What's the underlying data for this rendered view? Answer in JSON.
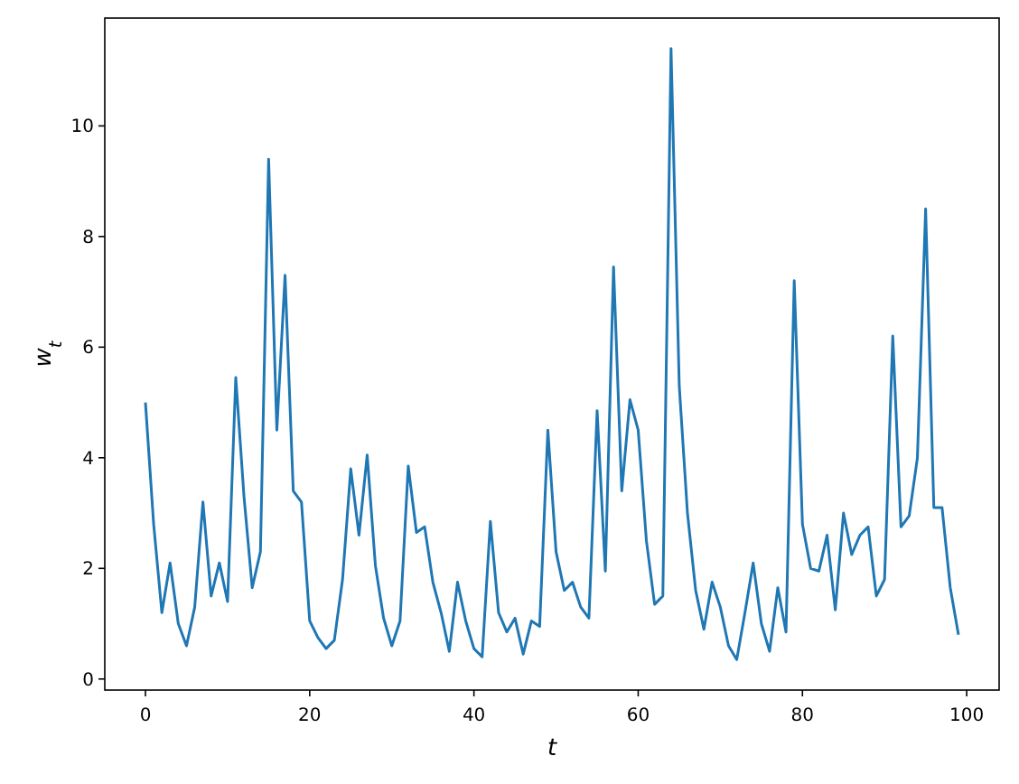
{
  "chart_data": {
    "type": "line",
    "xlabel": "t",
    "ylabel": "w$_{t}$",
    "x": [
      0,
      1,
      2,
      3,
      4,
      5,
      6,
      7,
      8,
      9,
      10,
      11,
      12,
      13,
      14,
      15,
      16,
      17,
      18,
      19,
      20,
      21,
      22,
      23,
      24,
      25,
      26,
      27,
      28,
      29,
      30,
      31,
      32,
      33,
      34,
      35,
      36,
      37,
      38,
      39,
      40,
      41,
      42,
      43,
      44,
      45,
      46,
      47,
      48,
      49,
      50,
      51,
      52,
      53,
      54,
      55,
      56,
      57,
      58,
      59,
      60,
      61,
      62,
      63,
      64,
      65,
      66,
      67,
      68,
      69,
      70,
      71,
      72,
      73,
      74,
      75,
      76,
      77,
      78,
      79,
      80,
      81,
      82,
      83,
      84,
      85,
      86,
      87,
      88,
      89,
      90,
      91,
      92,
      93,
      94,
      95,
      96,
      97,
      98,
      99
    ],
    "series": [
      {
        "color": "#1f77b4",
        "values": [
          5.0,
          2.8,
          1.2,
          2.1,
          1.0,
          0.6,
          1.3,
          3.2,
          1.5,
          2.1,
          1.4,
          5.45,
          3.3,
          1.65,
          2.3,
          9.4,
          4.5,
          7.3,
          3.4,
          3.2,
          1.05,
          0.75,
          0.55,
          0.7,
          1.8,
          3.8,
          2.6,
          4.05,
          2.05,
          1.1,
          0.6,
          1.05,
          3.85,
          2.65,
          2.75,
          1.75,
          1.2,
          0.5,
          1.75,
          1.05,
          0.55,
          0.4,
          2.85,
          1.2,
          0.85,
          1.1,
          0.45,
          1.05,
          0.95,
          4.5,
          2.3,
          1.6,
          1.75,
          1.3,
          1.1,
          4.85,
          1.95,
          7.45,
          3.4,
          5.05,
          4.5,
          2.5,
          1.35,
          1.5,
          11.4,
          5.3,
          3.0,
          1.6,
          0.9,
          1.75,
          1.3,
          0.6,
          0.35,
          1.2,
          2.1,
          1.0,
          0.5,
          1.65,
          0.85,
          7.2,
          2.8,
          2.0,
          1.95,
          2.6,
          1.25,
          3.0,
          2.25,
          2.6,
          2.75,
          1.5,
          1.8,
          6.2,
          2.75,
          2.95,
          4.0,
          8.5,
          3.1,
          3.1,
          1.65,
          0.8
        ]
      }
    ],
    "xlim": [
      -4.95,
      103.95
    ],
    "ylim": [
      -0.2,
      11.95
    ],
    "xticks": [
      0,
      20,
      40,
      60,
      80,
      100
    ],
    "yticks": [
      0,
      2,
      4,
      6,
      8,
      10
    ],
    "grid": false,
    "marker": "none",
    "line_style": "solid"
  }
}
